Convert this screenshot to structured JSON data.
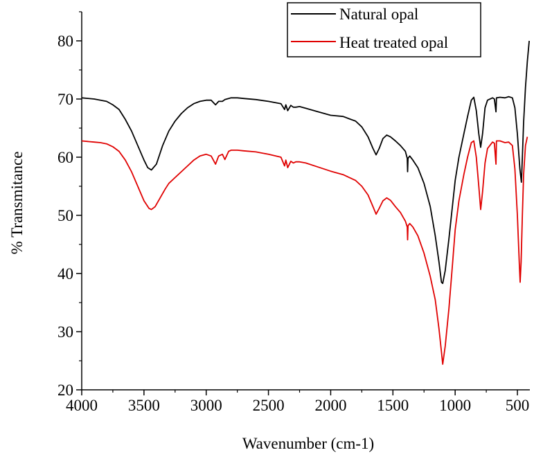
{
  "chart_data": {
    "type": "line",
    "title": "",
    "xlabel": "Wavenumber (cm-1)",
    "ylabel": "% Transmitance",
    "xlim": [
      4000,
      400
    ],
    "ylim": [
      20,
      85
    ],
    "x_reversed": true,
    "x_ticks": [
      4000,
      3500,
      3000,
      2500,
      2000,
      1500,
      1000,
      500
    ],
    "y_ticks": [
      20,
      30,
      40,
      50,
      60,
      70,
      80
    ],
    "x_tick_labels": [
      "4000",
      "3500",
      "3000",
      "2500",
      "2000",
      "1500",
      "1000",
      "500"
    ],
    "y_tick_labels": [
      "20",
      "30",
      "40",
      "50",
      "60",
      "70",
      "80"
    ],
    "grid": false,
    "legend_position": "top-right",
    "series": [
      {
        "name": "Natural opal",
        "color": "#000000",
        "points": [
          [
            4000,
            70.2
          ],
          [
            3900,
            70.0
          ],
          [
            3800,
            69.6
          ],
          [
            3750,
            69.0
          ],
          [
            3700,
            68.2
          ],
          [
            3650,
            66.5
          ],
          [
            3600,
            64.5
          ],
          [
            3550,
            62.0
          ],
          [
            3500,
            59.5
          ],
          [
            3470,
            58.2
          ],
          [
            3440,
            57.8
          ],
          [
            3400,
            58.8
          ],
          [
            3350,
            62.0
          ],
          [
            3300,
            64.5
          ],
          [
            3250,
            66.2
          ],
          [
            3200,
            67.5
          ],
          [
            3150,
            68.5
          ],
          [
            3100,
            69.2
          ],
          [
            3050,
            69.6
          ],
          [
            3000,
            69.8
          ],
          [
            2960,
            69.8
          ],
          [
            2925,
            69.0
          ],
          [
            2900,
            69.6
          ],
          [
            2870,
            69.6
          ],
          [
            2850,
            69.9
          ],
          [
            2800,
            70.2
          ],
          [
            2750,
            70.2
          ],
          [
            2700,
            70.1
          ],
          [
            2600,
            69.9
          ],
          [
            2500,
            69.6
          ],
          [
            2400,
            69.2
          ],
          [
            2370,
            68.2
          ],
          [
            2360,
            69.0
          ],
          [
            2345,
            68.0
          ],
          [
            2320,
            68.9
          ],
          [
            2300,
            68.6
          ],
          [
            2280,
            68.6
          ],
          [
            2250,
            68.7
          ],
          [
            2200,
            68.4
          ],
          [
            2100,
            67.8
          ],
          [
            2000,
            67.2
          ],
          [
            1900,
            67.0
          ],
          [
            1850,
            66.6
          ],
          [
            1800,
            66.2
          ],
          [
            1750,
            65.2
          ],
          [
            1700,
            63.5
          ],
          [
            1660,
            61.5
          ],
          [
            1635,
            60.4
          ],
          [
            1610,
            61.5
          ],
          [
            1580,
            63.2
          ],
          [
            1550,
            63.8
          ],
          [
            1520,
            63.5
          ],
          [
            1480,
            62.8
          ],
          [
            1440,
            62.0
          ],
          [
            1400,
            61.0
          ],
          [
            1385,
            59.8
          ],
          [
            1382,
            57.5
          ],
          [
            1379,
            59.8
          ],
          [
            1365,
            60.2
          ],
          [
            1340,
            59.5
          ],
          [
            1300,
            58.2
          ],
          [
            1250,
            55.5
          ],
          [
            1200,
            51.5
          ],
          [
            1160,
            46.5
          ],
          [
            1130,
            42.0
          ],
          [
            1110,
            38.5
          ],
          [
            1100,
            38.3
          ],
          [
            1080,
            40.5
          ],
          [
            1050,
            46.0
          ],
          [
            1020,
            52.0
          ],
          [
            1000,
            56.0
          ],
          [
            970,
            60.0
          ],
          [
            930,
            64.0
          ],
          [
            900,
            67.0
          ],
          [
            870,
            69.8
          ],
          [
            850,
            70.3
          ],
          [
            830,
            68.0
          ],
          [
            810,
            64.0
          ],
          [
            795,
            61.7
          ],
          [
            780,
            64.0
          ],
          [
            760,
            68.5
          ],
          [
            740,
            69.8
          ],
          [
            700,
            70.2
          ],
          [
            685,
            70.0
          ],
          [
            672,
            67.8
          ],
          [
            668,
            70.2
          ],
          [
            640,
            70.3
          ],
          [
            600,
            70.2
          ],
          [
            570,
            70.4
          ],
          [
            540,
            70.2
          ],
          [
            520,
            68.5
          ],
          [
            500,
            64.0
          ],
          [
            480,
            58.0
          ],
          [
            468,
            55.7
          ],
          [
            460,
            60.0
          ],
          [
            450,
            66.0
          ],
          [
            435,
            72.0
          ],
          [
            420,
            76.5
          ],
          [
            405,
            80.0
          ]
        ]
      },
      {
        "name": "Heat treated opal",
        "color": "#e00000",
        "points": [
          [
            4000,
            62.8
          ],
          [
            3900,
            62.6
          ],
          [
            3850,
            62.5
          ],
          [
            3800,
            62.3
          ],
          [
            3750,
            61.8
          ],
          [
            3700,
            61.0
          ],
          [
            3650,
            59.5
          ],
          [
            3600,
            57.5
          ],
          [
            3550,
            55.0
          ],
          [
            3500,
            52.5
          ],
          [
            3460,
            51.2
          ],
          [
            3440,
            51.0
          ],
          [
            3410,
            51.5
          ],
          [
            3370,
            53.0
          ],
          [
            3330,
            54.5
          ],
          [
            3300,
            55.5
          ],
          [
            3250,
            56.5
          ],
          [
            3200,
            57.5
          ],
          [
            3150,
            58.5
          ],
          [
            3100,
            59.5
          ],
          [
            3050,
            60.2
          ],
          [
            3000,
            60.5
          ],
          [
            2960,
            60.2
          ],
          [
            2925,
            58.8
          ],
          [
            2900,
            60.2
          ],
          [
            2870,
            60.5
          ],
          [
            2850,
            59.6
          ],
          [
            2820,
            61.0
          ],
          [
            2800,
            61.2
          ],
          [
            2750,
            61.2
          ],
          [
            2700,
            61.1
          ],
          [
            2600,
            60.9
          ],
          [
            2500,
            60.5
          ],
          [
            2400,
            60.0
          ],
          [
            2370,
            58.5
          ],
          [
            2360,
            59.5
          ],
          [
            2345,
            58.2
          ],
          [
            2320,
            59.3
          ],
          [
            2300,
            59.0
          ],
          [
            2280,
            59.2
          ],
          [
            2250,
            59.2
          ],
          [
            2200,
            59.0
          ],
          [
            2100,
            58.3
          ],
          [
            2000,
            57.6
          ],
          [
            1950,
            57.3
          ],
          [
            1900,
            57.0
          ],
          [
            1850,
            56.5
          ],
          [
            1800,
            56.0
          ],
          [
            1750,
            55.0
          ],
          [
            1700,
            53.5
          ],
          [
            1660,
            51.5
          ],
          [
            1635,
            50.2
          ],
          [
            1610,
            51.2
          ],
          [
            1580,
            52.5
          ],
          [
            1550,
            53.0
          ],
          [
            1520,
            52.6
          ],
          [
            1480,
            51.5
          ],
          [
            1440,
            50.5
          ],
          [
            1400,
            49.0
          ],
          [
            1385,
            48.0
          ],
          [
            1382,
            45.8
          ],
          [
            1379,
            48.2
          ],
          [
            1365,
            48.6
          ],
          [
            1340,
            48.0
          ],
          [
            1300,
            46.5
          ],
          [
            1250,
            43.5
          ],
          [
            1200,
            39.5
          ],
          [
            1160,
            35.5
          ],
          [
            1130,
            30.5
          ],
          [
            1110,
            26.5
          ],
          [
            1100,
            24.4
          ],
          [
            1080,
            27.5
          ],
          [
            1050,
            34.0
          ],
          [
            1020,
            42.0
          ],
          [
            1000,
            47.5
          ],
          [
            970,
            52.5
          ],
          [
            930,
            57.0
          ],
          [
            900,
            60.0
          ],
          [
            870,
            62.5
          ],
          [
            850,
            62.8
          ],
          [
            830,
            60.0
          ],
          [
            810,
            55.0
          ],
          [
            795,
            51.0
          ],
          [
            780,
            54.0
          ],
          [
            760,
            59.0
          ],
          [
            740,
            61.5
          ],
          [
            700,
            62.6
          ],
          [
            685,
            62.4
          ],
          [
            672,
            58.8
          ],
          [
            668,
            62.8
          ],
          [
            640,
            62.8
          ],
          [
            600,
            62.5
          ],
          [
            570,
            62.6
          ],
          [
            540,
            62.0
          ],
          [
            520,
            58.0
          ],
          [
            500,
            50.0
          ],
          [
            485,
            42.0
          ],
          [
            478,
            38.5
          ],
          [
            470,
            42.0
          ],
          [
            460,
            50.0
          ],
          [
            450,
            57.0
          ],
          [
            435,
            62.0
          ],
          [
            420,
            63.5
          ]
        ]
      }
    ]
  }
}
